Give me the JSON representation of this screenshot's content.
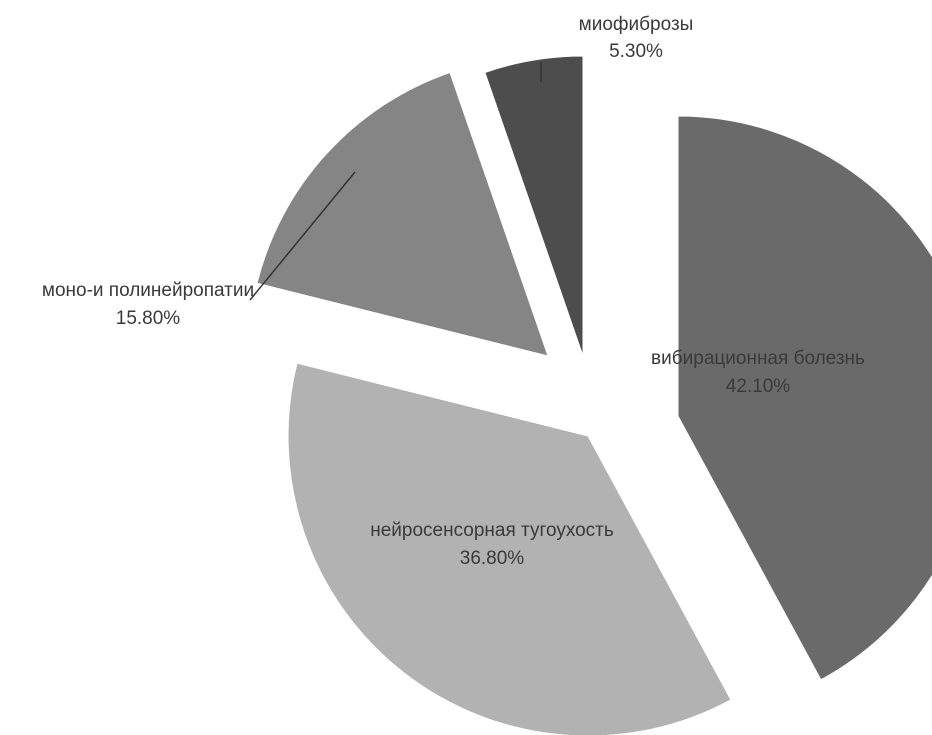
{
  "chart_data": {
    "type": "pie",
    "legend": "none",
    "data_labels": "category-and-percent",
    "exploded": true,
    "slices": [
      {
        "label": "вибирационная болезнь",
        "percent_text": "42.10%",
        "value": 42.1,
        "color": "#6a6a6a"
      },
      {
        "label": "нейросенсорная тугоухость",
        "percent_text": "36.80%",
        "value": 36.8,
        "color": "#b2b2b2"
      },
      {
        "label": "моно-и полинейропатии",
        "percent_text": "15.80%",
        "value": 15.8,
        "color": "#858585"
      },
      {
        "label": "миофиброзы",
        "percent_text": "5.30%",
        "value": 5.3,
        "color": "#4d4d4d"
      }
    ]
  }
}
